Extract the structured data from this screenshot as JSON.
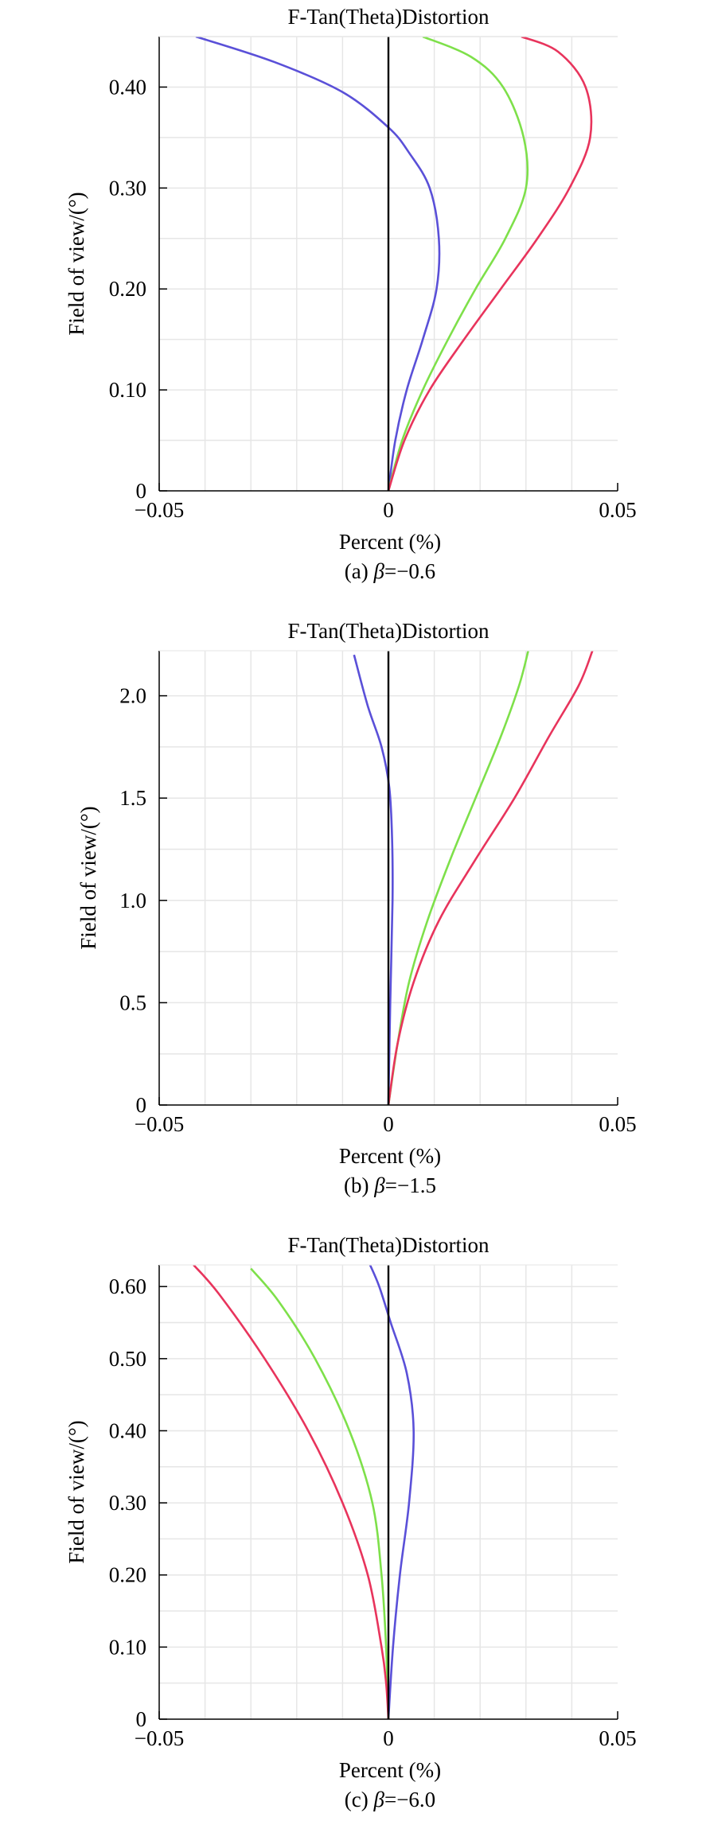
{
  "colors": {
    "blue": "#5a50d8",
    "green": "#7ee04a",
    "red": "#e8345c",
    "axis": "#000000",
    "grid": "#e6e6e6"
  },
  "chart_data": [
    {
      "type": "line",
      "title": "F-Tan(Theta)Distortion",
      "xlabel": "Percent (%)",
      "ylabel": "Field of view/(°)",
      "caption_prefix": "(a) ",
      "caption_symbol": "β",
      "caption_value": "=−0.6",
      "xlim": [
        -0.05,
        0.05
      ],
      "ylim": [
        0,
        0.45
      ],
      "xticks": [
        -0.05,
        0,
        0.05
      ],
      "xtick_labels": [
        "−0.05",
        "0",
        "0.05"
      ],
      "yticks": [
        0,
        0.1,
        0.2,
        0.3,
        0.4
      ],
      "ytick_labels": [
        "0",
        "0.10",
        "0.20",
        "0.30",
        "0.40"
      ],
      "grid": true,
      "series": [
        {
          "color": "blue",
          "points": [
            [
              0,
              0
            ],
            [
              0.0015,
              0.05
            ],
            [
              0.004,
              0.1
            ],
            [
              0.0075,
              0.15
            ],
            [
              0.0105,
              0.2
            ],
            [
              0.011,
              0.25
            ],
            [
              0.009,
              0.3
            ],
            [
              0.0045,
              0.335
            ],
            [
              0,
              0.36
            ],
            [
              -0.01,
              0.395
            ],
            [
              -0.025,
              0.425
            ],
            [
              -0.042,
              0.45
            ]
          ]
        },
        {
          "color": "green",
          "points": [
            [
              0,
              0
            ],
            [
              0.003,
              0.05
            ],
            [
              0.0075,
              0.1
            ],
            [
              0.013,
              0.15
            ],
            [
              0.019,
              0.2
            ],
            [
              0.0255,
              0.25
            ],
            [
              0.03,
              0.3
            ],
            [
              0.0295,
              0.35
            ],
            [
              0.025,
              0.4
            ],
            [
              0.018,
              0.43
            ],
            [
              0.0075,
              0.45
            ]
          ]
        },
        {
          "color": "red",
          "points": [
            [
              0,
              0
            ],
            [
              0.0035,
              0.05
            ],
            [
              0.009,
              0.1
            ],
            [
              0.0165,
              0.15
            ],
            [
              0.0245,
              0.2
            ],
            [
              0.0325,
              0.25
            ],
            [
              0.0395,
              0.3
            ],
            [
              0.044,
              0.35
            ],
            [
              0.043,
              0.4
            ],
            [
              0.037,
              0.435
            ],
            [
              0.029,
              0.45
            ]
          ]
        }
      ]
    },
    {
      "type": "line",
      "title": "F-Tan(Theta)Distortion",
      "xlabel": "Percent (%)",
      "ylabel": "Field of view/(°)",
      "caption_prefix": "(b) ",
      "caption_symbol": "β",
      "caption_value": "=−1.5",
      "xlim": [
        -0.05,
        0.05
      ],
      "ylim": [
        0,
        2.22
      ],
      "xticks": [
        -0.05,
        0,
        0.05
      ],
      "xtick_labels": [
        "−0.05",
        "0",
        "0.05"
      ],
      "yticks": [
        0,
        0.5,
        1.0,
        1.5,
        2.0
      ],
      "ytick_labels": [
        "0",
        "0.5",
        "1.0",
        "1.5",
        "2.0"
      ],
      "grid": true,
      "series": [
        {
          "color": "blue",
          "points": [
            [
              0,
              0
            ],
            [
              0.0004,
              0.5
            ],
            [
              0.0009,
              1.0
            ],
            [
              0.0008,
              1.3
            ],
            [
              0.0002,
              1.55
            ],
            [
              -0.0015,
              1.75
            ],
            [
              -0.0045,
              1.95
            ],
            [
              -0.0075,
              2.2
            ]
          ]
        },
        {
          "color": "green",
          "points": [
            [
              0,
              0
            ],
            [
              0.002,
              0.3
            ],
            [
              0.0045,
              0.6
            ],
            [
              0.0085,
              0.9
            ],
            [
              0.0135,
              1.2
            ],
            [
              0.019,
              1.5
            ],
            [
              0.0245,
              1.8
            ],
            [
              0.0285,
              2.05
            ],
            [
              0.0305,
              2.22
            ]
          ]
        },
        {
          "color": "red",
          "points": [
            [
              0,
              0
            ],
            [
              0.002,
              0.3
            ],
            [
              0.0055,
              0.6
            ],
            [
              0.011,
              0.9
            ],
            [
              0.019,
              1.2
            ],
            [
              0.0275,
              1.5
            ],
            [
              0.035,
              1.8
            ],
            [
              0.0415,
              2.05
            ],
            [
              0.0445,
              2.22
            ]
          ]
        }
      ]
    },
    {
      "type": "line",
      "title": "F-Tan(Theta)Distortion",
      "xlabel": "Percent (%)",
      "ylabel": "Field of view/(°)",
      "caption_prefix": "(c) ",
      "caption_symbol": "β",
      "caption_value": "=−6.0",
      "xlim": [
        -0.05,
        0.05
      ],
      "ylim": [
        0,
        0.63
      ],
      "xticks": [
        -0.05,
        0,
        0.05
      ],
      "xtick_labels": [
        "−0.05",
        "0",
        "0.05"
      ],
      "yticks": [
        0,
        0.1,
        0.2,
        0.3,
        0.4,
        0.5,
        0.6
      ],
      "ytick_labels": [
        "0",
        "0.10",
        "0.20",
        "0.30",
        "0.40",
        "0.50",
        "0.60"
      ],
      "grid": true,
      "series": [
        {
          "color": "blue",
          "points": [
            [
              0,
              0
            ],
            [
              0.001,
              0.1
            ],
            [
              0.0025,
              0.2
            ],
            [
              0.0045,
              0.3
            ],
            [
              0.0055,
              0.4
            ],
            [
              0.004,
              0.48
            ],
            [
              0.0005,
              0.55
            ],
            [
              -0.002,
              0.6
            ],
            [
              -0.004,
              0.63
            ]
          ]
        },
        {
          "color": "green",
          "points": [
            [
              0,
              0
            ],
            [
              -0.0005,
              0.1
            ],
            [
              -0.0015,
              0.2
            ],
            [
              -0.0035,
              0.3
            ],
            [
              -0.0085,
              0.4
            ],
            [
              -0.016,
              0.5
            ],
            [
              -0.024,
              0.58
            ],
            [
              -0.03,
              0.625
            ]
          ]
        },
        {
          "color": "red",
          "points": [
            [
              0,
              0
            ],
            [
              -0.0005,
              0.05
            ],
            [
              -0.0015,
              0.1
            ],
            [
              -0.0045,
              0.2
            ],
            [
              -0.01,
              0.3
            ],
            [
              -0.0175,
              0.4
            ],
            [
              -0.027,
              0.5
            ],
            [
              -0.037,
              0.59
            ],
            [
              -0.0425,
              0.63
            ]
          ]
        }
      ]
    }
  ]
}
